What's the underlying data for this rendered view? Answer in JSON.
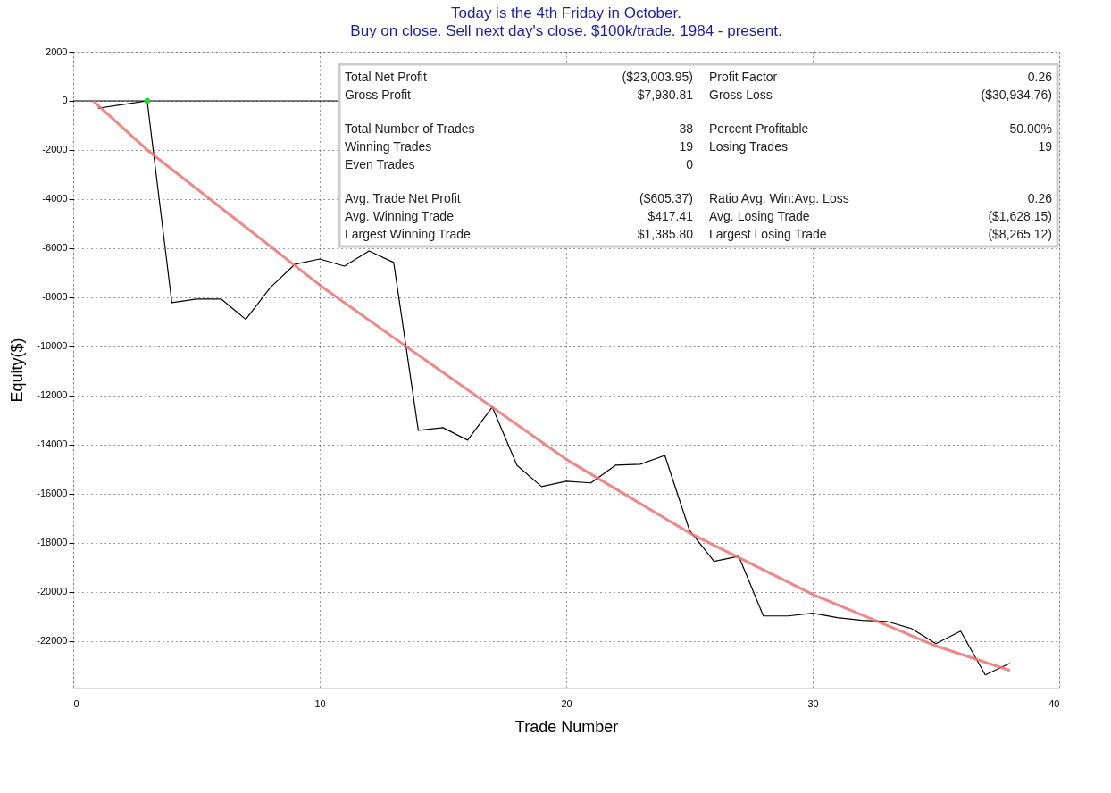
{
  "chart_data": {
    "type": "line",
    "title": "Today is the 4th Friday in October.",
    "subtitle": "Buy on close. Sell next day's close. $100k/trade. 1984 - present.",
    "xlabel": "Trade Number",
    "ylabel": "Equity($)",
    "xlim": [
      0,
      40
    ],
    "xticks": [
      0,
      10,
      20,
      30,
      40
    ],
    "ylim": [
      -23900,
      2000
    ],
    "yticks": [
      2000,
      0,
      -2000,
      -4000,
      -6000,
      -8000,
      -10000,
      -12000,
      -14000,
      -16000,
      -18000,
      -20000,
      -22000
    ],
    "grid": true,
    "legend": false,
    "marker": "none",
    "line_style": "solid",
    "ref_lines": [
      {
        "axis": "y",
        "value": 0,
        "color": "#000000",
        "line_style": "solid"
      }
    ],
    "series": [
      {
        "color": "#000000",
        "x": [
          1,
          2,
          3,
          4,
          5,
          6,
          7,
          8,
          9,
          10,
          11,
          12,
          13,
          14,
          15,
          16,
          17,
          18,
          19,
          20,
          21,
          22,
          23,
          24,
          25,
          26,
          27,
          28,
          29,
          30,
          31,
          32,
          33,
          34,
          35,
          36,
          37,
          38
        ],
        "values": [
          -300,
          -150,
          0,
          -8220,
          -8070,
          -8070,
          -8900,
          -7600,
          -6650,
          -6440,
          -6730,
          -6110,
          -6580,
          -13420,
          -13310,
          -13820,
          -12470,
          -14840,
          -15710,
          -15490,
          -15560,
          -14840,
          -14800,
          -14440,
          -17490,
          -18760,
          -18550,
          -20980,
          -20980,
          -20870,
          -21050,
          -21160,
          -21200,
          -21490,
          -22110,
          -21600,
          -23380,
          -22910
        ]
      },
      {
        "type": "scatter",
        "color": "#22dd22",
        "x": [
          3
        ],
        "values": [
          0
        ]
      },
      {
        "type": "line",
        "color": "#f07070",
        "x": [
          0.8,
          3,
          10,
          13.5,
          20,
          25,
          30,
          35,
          38
        ],
        "values": [
          0,
          -2000,
          -7500,
          -10000,
          -14600,
          -17600,
          -20100,
          -22200,
          -23200
        ]
      }
    ],
    "annotations": [
      "Total Net Profit",
      "($23,003.95)",
      "Profit Factor",
      "0.26",
      "Gross Profit",
      "$7,930.81",
      "Gross Loss",
      "($30,934.76)",
      "Total Number of Trades",
      "38",
      "Percent Profitable",
      "50.00%",
      "Winning Trades",
      "19",
      "Losing Trades",
      "19",
      "Even Trades",
      "0",
      "Avg. Trade Net Profit",
      "($605.37)",
      "Ratio Avg. Win:Avg. Loss",
      "0.26",
      "Avg. Winning Trade",
      "$417.41",
      "Avg. Losing Trade",
      "($1,628.15)",
      "Largest Winning Trade",
      "$1,385.80",
      "Largest Losing Trade",
      "($8,265.12)"
    ]
  }
}
